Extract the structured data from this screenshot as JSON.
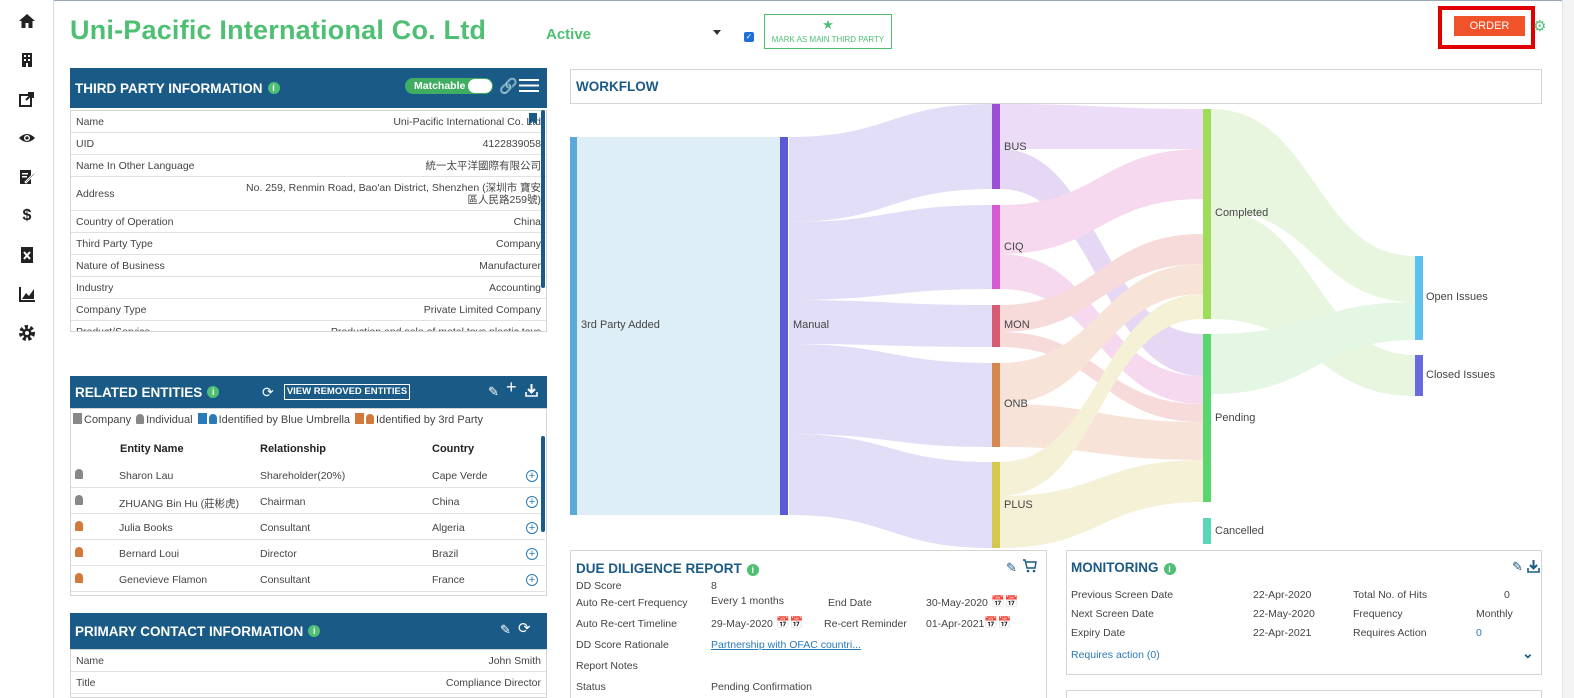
{
  "sidebar": {
    "items": [
      "home-icon",
      "building-icon",
      "share-icon",
      "eye-icon",
      "edit-doc-icon",
      "dollar-icon",
      "excel-icon",
      "chart-icon",
      "gear-icon"
    ]
  },
  "header": {
    "company_name": "Uni-Pacific International Co. Ltd",
    "status": "Active",
    "mark_main_label": "MARK AS MAIN THIRD PARTY",
    "order_label": "ORDER",
    "accent_color": "#4ebf73",
    "order_color": "#f0522a"
  },
  "third_party": {
    "title": "THIRD PARTY INFORMATION",
    "matchable_label": "Matchable",
    "rows": [
      {
        "k": "Name",
        "v": "Uni-Pacific International Co. Ltd"
      },
      {
        "k": "UID",
        "v": "4122839058"
      },
      {
        "k": "Name In Other Language",
        "v": "統一太平洋國際有限公司"
      },
      {
        "k": "Address",
        "v": "No. 259, Renmin Road, Bao'an District, Shenzhen (深圳市 寶安區人民路259號)"
      },
      {
        "k": "Country of Operation",
        "v": "China"
      },
      {
        "k": "Third Party Type",
        "v": "Company"
      },
      {
        "k": "Nature of Business",
        "v": "Manufacturer"
      },
      {
        "k": "Industry",
        "v": "Accounting"
      },
      {
        "k": "Company Type",
        "v": "Private Limited Company"
      },
      {
        "k": "Product/Service",
        "v": "Production and sale of metal toys plastic toys"
      }
    ]
  },
  "related": {
    "title": "RELATED ENTITIES",
    "view_removed": "VIEW REMOVED ENTITIES",
    "legend": {
      "company": "Company",
      "individual": "Individual",
      "blue": "Identified by Blue Umbrella",
      "third": "Identified by 3rd Party"
    },
    "columns": [
      "Entity Name",
      "Relationship",
      "Country"
    ],
    "rows": [
      {
        "name": "Sharon Lau",
        "rel": "Shareholder(20%)",
        "country": "Cape Verde",
        "src": "grey"
      },
      {
        "name": "ZHUANG Bin Hu (莊彬虎)",
        "rel": "Chairman",
        "country": "China",
        "src": "grey"
      },
      {
        "name": "Julia Books",
        "rel": "Consultant",
        "country": "Algeria",
        "src": "orange"
      },
      {
        "name": "Bernard Loui",
        "rel": "Director",
        "country": "Brazil",
        "src": "orange"
      },
      {
        "name": "Genevieve Flamon",
        "rel": "Consultant",
        "country": "France",
        "src": "orange"
      }
    ]
  },
  "primary_contact": {
    "title": "PRIMARY CONTACT INFORMATION",
    "rows": [
      {
        "k": "Name",
        "v": "John Smith"
      },
      {
        "k": "Title",
        "v": "Compliance Director"
      }
    ]
  },
  "workflow": {
    "title": "WORKFLOW",
    "nodes": {
      "added": "3rd Party Added",
      "manual": "Manual",
      "bus": "BUS",
      "ciq": "CIQ",
      "mon": "MON",
      "onb": "ONB",
      "plus": "PLUS",
      "completed": "Completed",
      "pending": "Pending",
      "cancelled": "Cancelled",
      "open": "Open Issues",
      "closed": "Closed Issues"
    }
  },
  "due_diligence": {
    "title": "DUE DILIGENCE REPORT",
    "dd_score_label": "DD Score",
    "dd_score": "8",
    "freq_label": "Auto Re-cert Frequency",
    "freq": "Every 1 months",
    "end_label": "End Date",
    "end": "30-May-2020",
    "timeline_label": "Auto Re-cert Timeline",
    "timeline": "29-May-2020",
    "reminder_label": "Re-cert Reminder",
    "reminder": "01-Apr-2021",
    "rationale_label": "DD Score Rationale",
    "rationale": "Partnership with OFAC countri...",
    "notes_label": "Report Notes",
    "status_label": "Status",
    "status": "Pending Confirmation"
  },
  "monitoring": {
    "title": "MONITORING",
    "prev_label": "Previous Screen Date",
    "prev": "22-Apr-2020",
    "next_label": "Next Screen Date",
    "next": "22-May-2020",
    "expiry_label": "Expiry Date",
    "expiry": "22-Apr-2021",
    "hits_label": "Total No. of Hits",
    "hits": "0",
    "freq_label": "Frequency",
    "freq": "Monthly",
    "action_label": "Requires Action",
    "action": "0",
    "requires_link": "Requires action (0)"
  }
}
